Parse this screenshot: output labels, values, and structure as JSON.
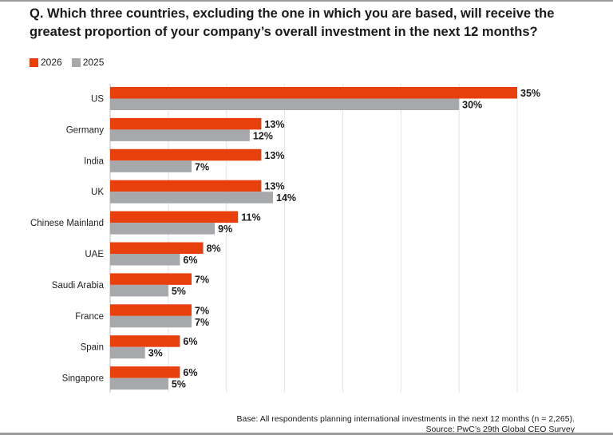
{
  "chart_data": {
    "type": "bar",
    "orientation": "horizontal",
    "title": "Q. Which three countries, excluding the one in which you are based, will receive the greatest proportion of your company’s overall investment in the next 12 months?",
    "categories": [
      "US",
      "Germany",
      "India",
      "UK",
      "Chinese Mainland",
      "UAE",
      "Saudi Arabia",
      "France",
      "Spain",
      "Singapore"
    ],
    "series": [
      {
        "name": "2026",
        "color": "#e8400c",
        "values": [
          35,
          13,
          13,
          13,
          11,
          8,
          7,
          7,
          6,
          6
        ]
      },
      {
        "name": "2025",
        "color": "#a6a8ab",
        "values": [
          30,
          12,
          7,
          14,
          9,
          6,
          5,
          7,
          3,
          5
        ]
      }
    ],
    "xlim": [
      0,
      35
    ],
    "grid": true,
    "legend": "top-left",
    "value_suffix": "%",
    "notes": {
      "base": "Base: All respondents planning international investments in the next 12 months (n = 2,265).",
      "source": "Source: PwC’s 29th Global CEO Survey"
    }
  }
}
